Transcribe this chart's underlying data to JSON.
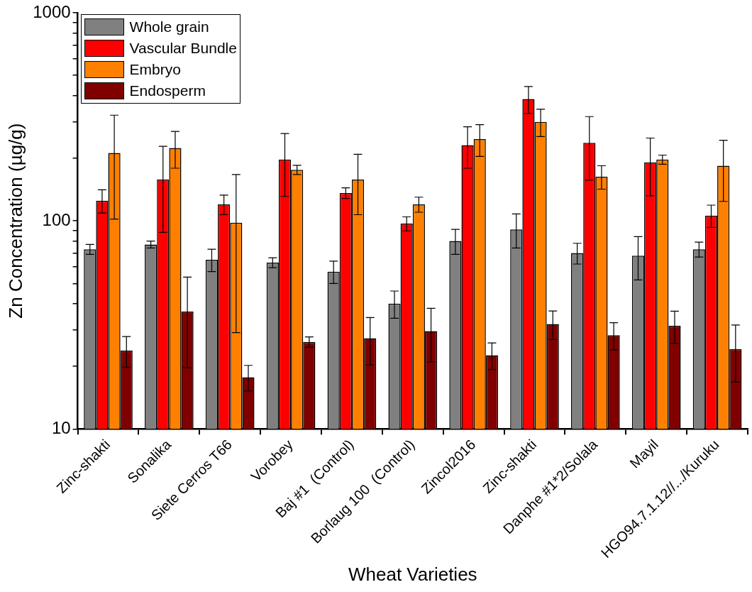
{
  "chart_data": {
    "type": "bar",
    "xlabel": "Wheat Varieties",
    "ylabel": "Zn Concentration (µg/g)",
    "categories": [
      "Zinc-shakti",
      "Sonalika",
      "Siete Cerros T66",
      "Vorobey",
      "Baj #1  (Control)",
      "Borlaug 100  (Control)",
      "Zincol2016",
      "Zinc-shakti",
      "Danphe #1*2/Solala",
      "Mayil",
      "HGO94.7.1.12//.../Kuruku"
    ],
    "series": [
      {
        "name": "Whole grain",
        "color": "#808080",
        "values": [
          73,
          77,
          65,
          63,
          57,
          40,
          80,
          91,
          70,
          68,
          73
        ],
        "errors": [
          4,
          3,
          8,
          3.5,
          7,
          6,
          11,
          17,
          8,
          16,
          6
        ]
      },
      {
        "name": "Vascular Bundle",
        "color": "#ff0000",
        "values": [
          125,
          158,
          120,
          197,
          136,
          97,
          231,
          385,
          237,
          191,
          106
        ],
        "errors": [
          16,
          70,
          13,
          66,
          8,
          7.5,
          52,
          57,
          80,
          59,
          13
        ]
      },
      {
        "name": "Embryo",
        "color": "#ff8000",
        "values": [
          212,
          224,
          98,
          176,
          158,
          120,
          247,
          299,
          163,
          197,
          184
        ],
        "errors": [
          110,
          45,
          69,
          9,
          51,
          10,
          43,
          45,
          21,
          10,
          60
        ]
      },
      {
        "name": "Endosperm",
        "color": "#800000",
        "values": [
          23.8,
          36.7,
          17.7,
          26.2,
          27.3,
          29.5,
          22.6,
          31.9,
          28.2,
          31.3,
          24.2
        ],
        "errors": [
          4,
          17,
          2.5,
          1.5,
          7,
          8.5,
          3.3,
          5,
          4.2,
          5.5,
          7.4
        ]
      }
    ],
    "log": "y",
    "ylim": [
      10,
      1000
    ],
    "yticks": [
      10,
      {
        "value": 20,
        "label": null
      },
      {
        "value": 30,
        "label": null
      },
      {
        "value": 40,
        "label": null
      },
      {
        "value": 50,
        "label": null
      },
      {
        "value": 60,
        "label": null
      },
      {
        "value": 70,
        "label": null
      },
      {
        "value": 80,
        "label": null
      },
      {
        "value": 90,
        "label": null
      },
      100,
      {
        "value": 200,
        "label": null
      },
      {
        "value": 300,
        "label": null
      },
      {
        "value": 400,
        "label": null
      },
      {
        "value": 500,
        "label": null
      },
      {
        "value": 600,
        "label": null
      },
      {
        "value": 700,
        "label": null
      },
      {
        "value": 800,
        "label": null
      },
      {
        "value": 900,
        "label": null
      },
      1000
    ],
    "grid": false,
    "legend": "top left"
  }
}
